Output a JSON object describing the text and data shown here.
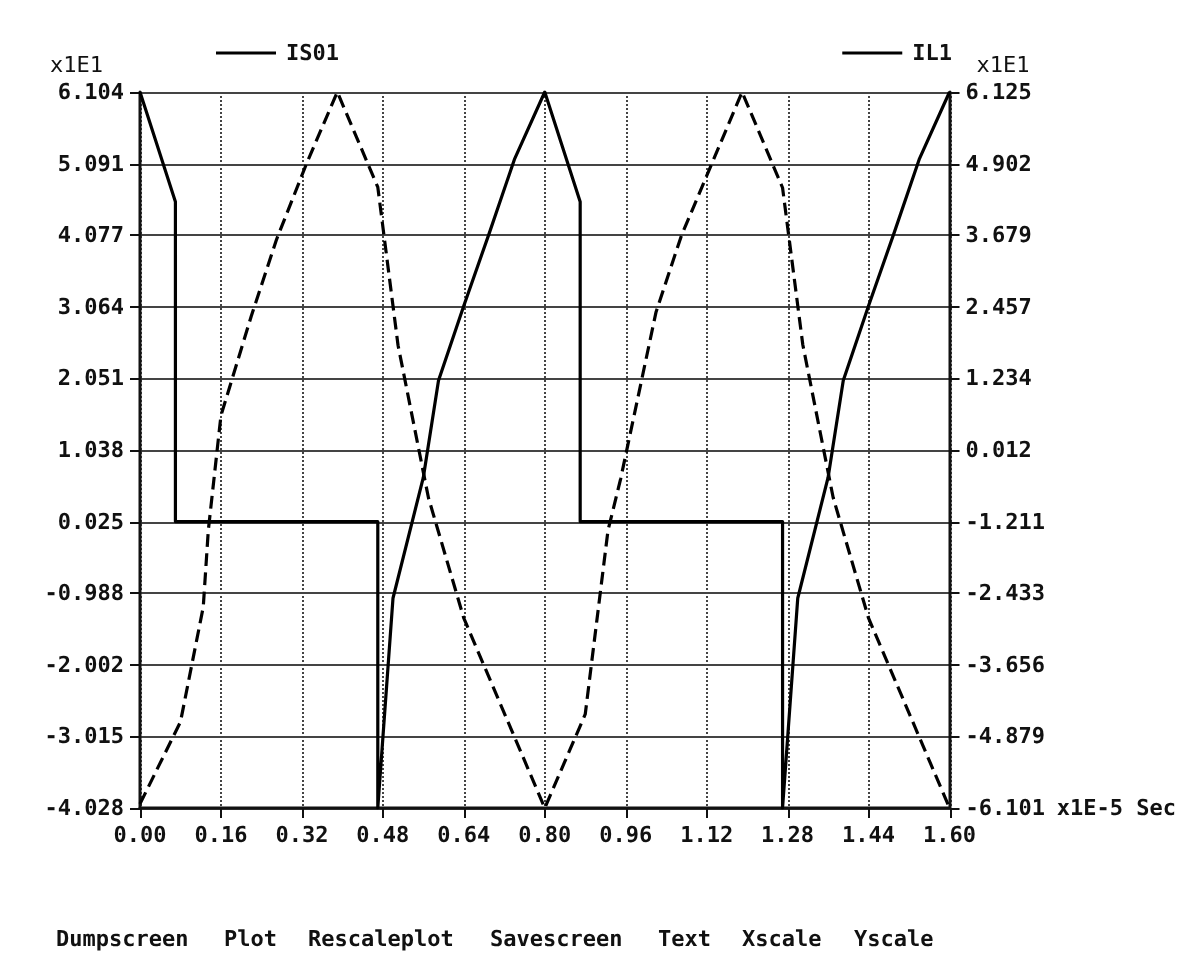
{
  "chart_data": {
    "type": "line",
    "xlabel": "x1E-5 Sec",
    "ylabel": "x1E1",
    "y2label": "x1E1",
    "xlim": [
      0,
      1.6
    ],
    "xticks": [
      {
        "value": 0,
        "label": "0.00"
      },
      {
        "value": 0.16,
        "label": "0.16"
      },
      {
        "value": 0.32,
        "label": "0.32"
      },
      {
        "value": 0.48,
        "label": "0.48"
      },
      {
        "value": 0.64,
        "label": "0.64"
      },
      {
        "value": 0.8,
        "label": "0.80"
      },
      {
        "value": 0.96,
        "label": "0.96"
      },
      {
        "value": 1.12,
        "label": "1.12"
      },
      {
        "value": 1.28,
        "label": "1.28"
      },
      {
        "value": 1.44,
        "label": "1.44"
      },
      {
        "value": 1.6,
        "label": "1.60"
      }
    ],
    "ylim": [
      -4.028,
      6.104
    ],
    "yticks": [
      -4.028,
      -3.015,
      -2.002,
      -0.988,
      0.025,
      1.038,
      2.051,
      3.064,
      4.077,
      5.091,
      6.104
    ],
    "y2lim": [
      -6.101,
      6.125
    ],
    "y2ticks": [
      -6.101,
      -4.879,
      -3.656,
      -2.433,
      -1.211,
      0.012,
      1.234,
      2.457,
      3.679,
      4.902,
      6.125
    ],
    "grid": true,
    "legend": "top",
    "marker": "none",
    "annotations": [
      "Dumpscreen",
      "Plot",
      "Rescaleplot",
      "Savescreen",
      "Text",
      "Xscale",
      "Yscale"
    ],
    "series": [
      {
        "name": "IS01",
        "color": "#000000",
        "line_style": "solid",
        "x": [
          0,
          0.07,
          0.07,
          0.47,
          0.47,
          0.5,
          0.56,
          0.59,
          0.64,
          0.69,
          0.74,
          0.8,
          0.87,
          0.87,
          1.27,
          1.27,
          1.3,
          1.36,
          1.39,
          1.44,
          1.49,
          1.54,
          1.6
        ],
        "values": [
          6.104,
          4.55,
          0.025,
          0.025,
          -4.028,
          -1.06,
          0.65,
          2.02,
          3.08,
          4.1,
          5.15,
          6.104,
          4.55,
          0.025,
          0.025,
          -4.028,
          -1.06,
          0.65,
          2.02,
          3.08,
          4.1,
          5.15,
          6.104
        ]
      },
      {
        "name": "IL1",
        "color": "#000000",
        "line_style": "dashed",
        "axis": "y2",
        "x": [
          0,
          0.08,
          0.125,
          0.135,
          0.16,
          0.22,
          0.27,
          0.33,
          0.39,
          0.47,
          0.51,
          0.57,
          0.64,
          0.8,
          0.88,
          0.925,
          0.95,
          1.02,
          1.07,
          1.19,
          1.27,
          1.31,
          1.37,
          1.44,
          1.6
        ],
        "values": [
          -6.03,
          -4.63,
          -2.67,
          -1.36,
          0.6,
          2.3,
          3.61,
          4.92,
          6.125,
          4.5,
          1.8,
          -0.8,
          -2.86,
          -6.101,
          -4.5,
          -1.36,
          -0.48,
          2.37,
          3.67,
          6.125,
          4.49,
          1.81,
          -0.8,
          -2.86,
          -6.101
        ]
      }
    ]
  }
}
